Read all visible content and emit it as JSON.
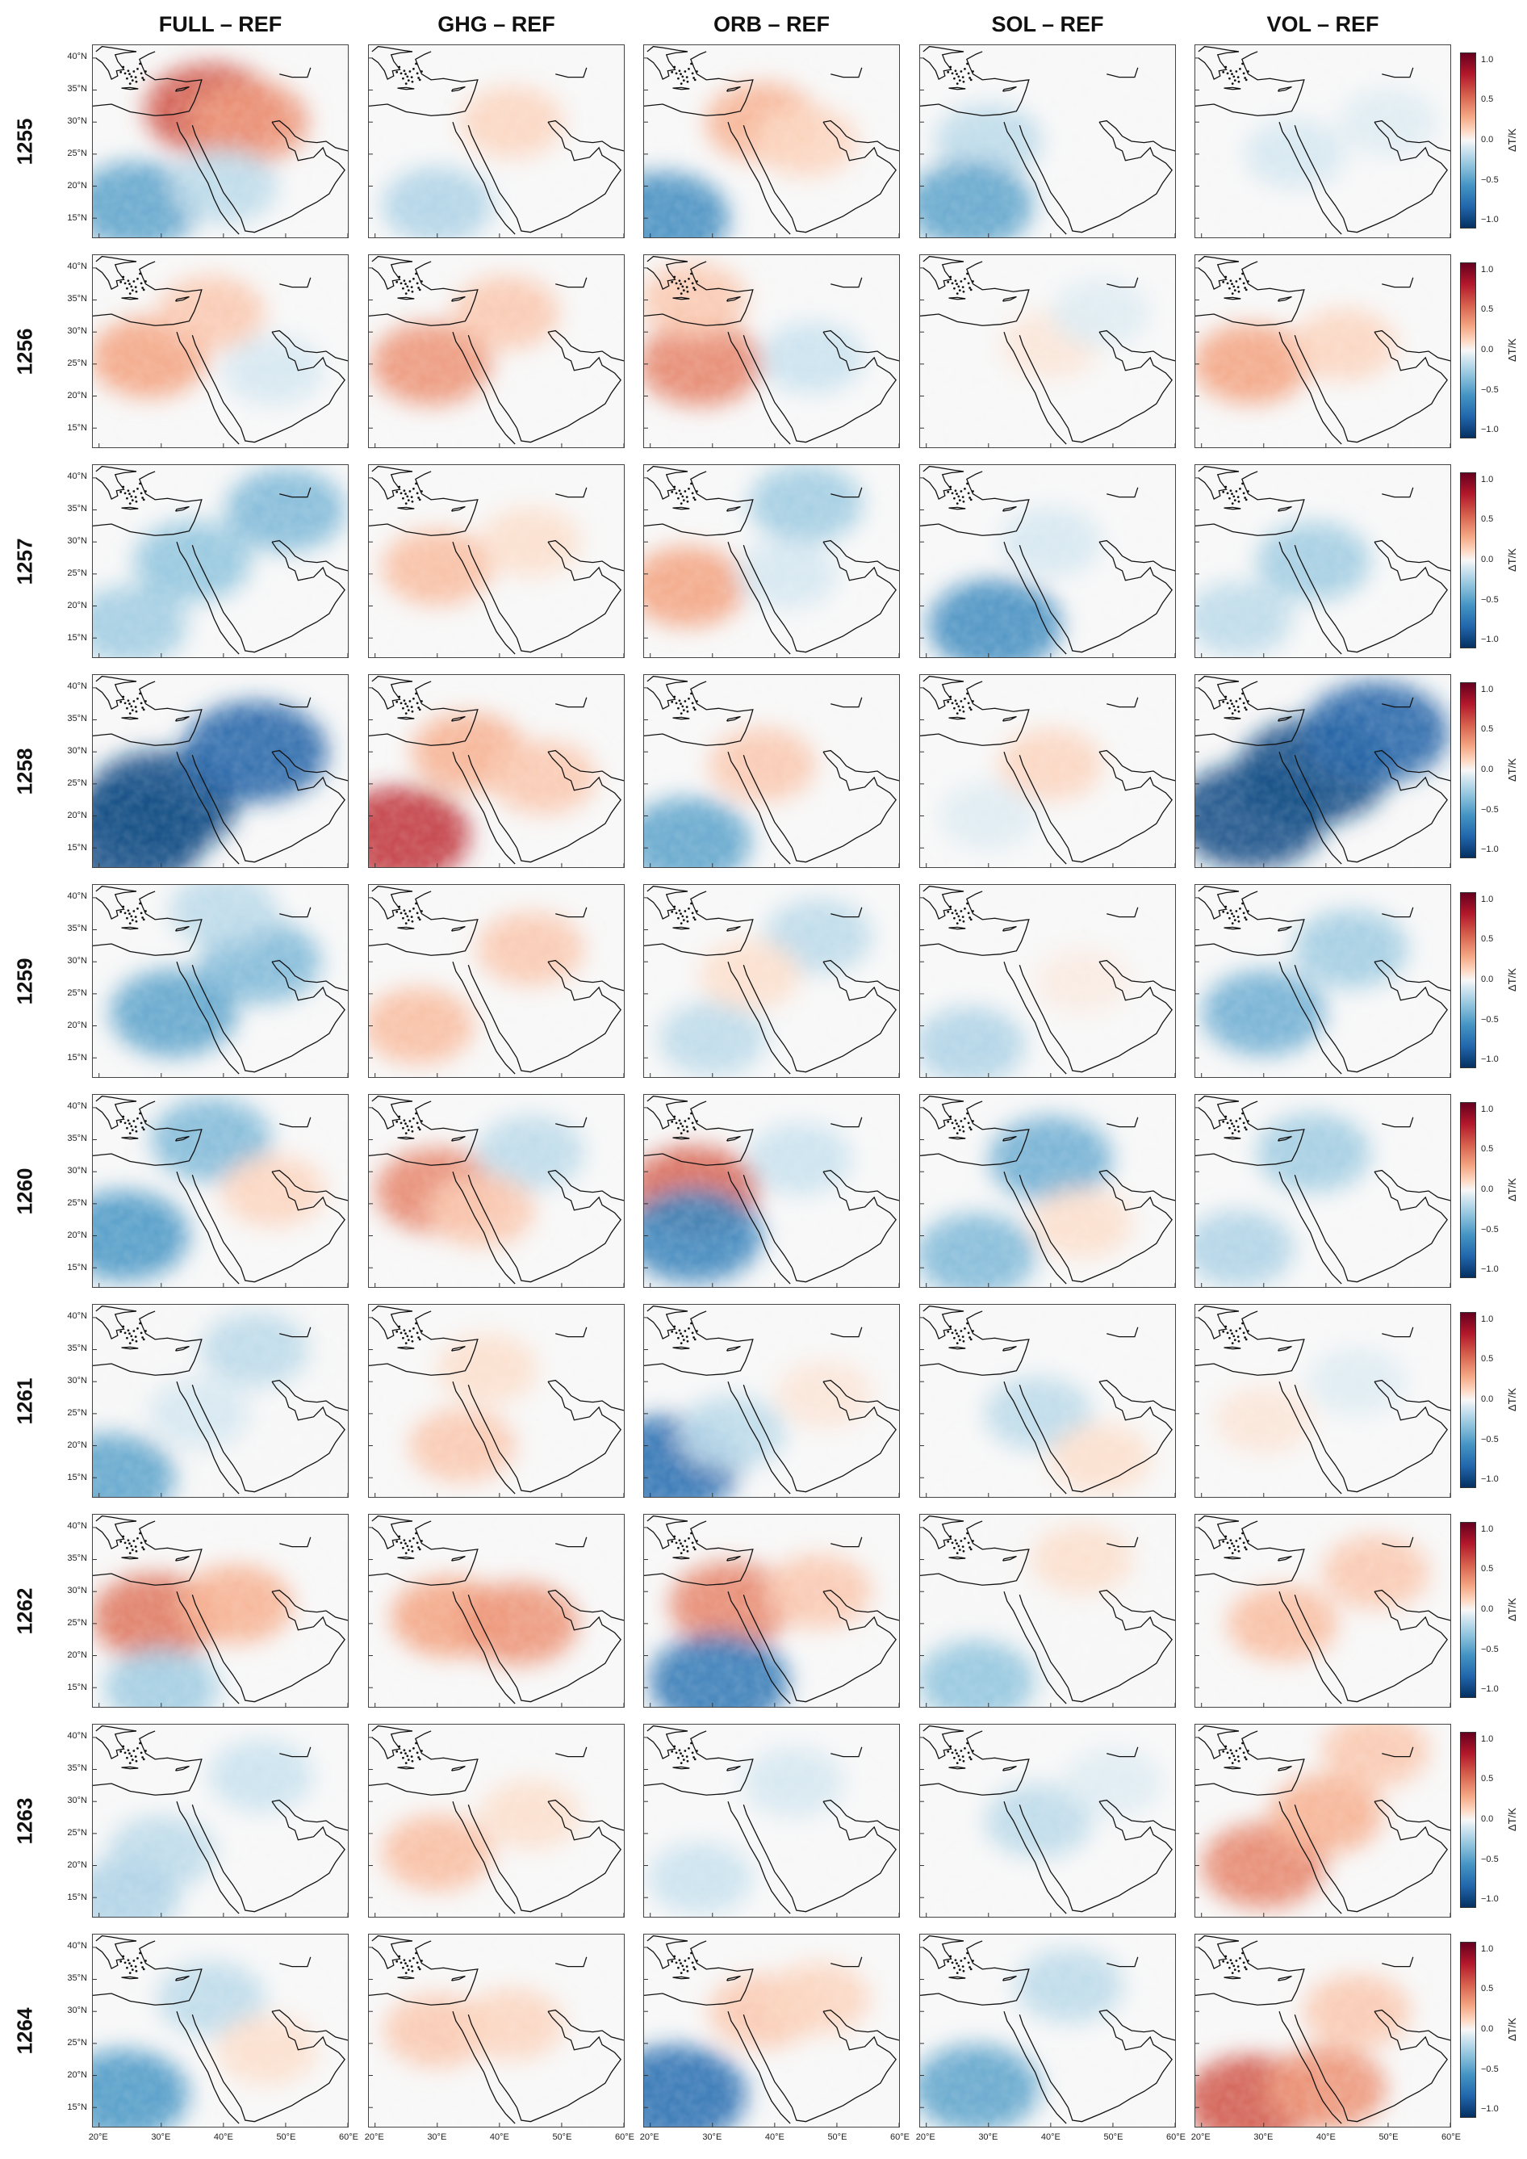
{
  "chart_data": {
    "type": "heatmap",
    "description_free": true,
    "columns": [
      "FULL – REF",
      "GHG – REF",
      "ORB – REF",
      "SOL – REF",
      "VOL – REF"
    ],
    "rows": [
      "1255",
      "1256",
      "1257",
      "1258",
      "1259",
      "1260",
      "1261",
      "1262",
      "1263",
      "1264"
    ],
    "y_tick_labels": [
      "40°N",
      "35°N",
      "30°N",
      "25°N",
      "20°N",
      "15°N"
    ],
    "y_ticks": [
      40,
      35,
      30,
      25,
      20,
      15
    ],
    "x_tick_labels": [
      "20°E",
      "30°E",
      "40°E",
      "50°E",
      "60°E"
    ],
    "x_ticks": [
      20,
      30,
      40,
      50,
      60
    ],
    "lon_range": [
      19,
      60
    ],
    "lat_range": [
      12,
      42
    ],
    "colorbar": {
      "label": "ΔT/K",
      "ticks": [
        "1.0",
        "0.5",
        "0.0",
        "−0.5",
        "−1.0"
      ],
      "tick_values": [
        1.0,
        0.5,
        0.0,
        -0.5,
        -1.0
      ],
      "range": [
        -1.1,
        1.1
      ],
      "colors": [
        "#67001f",
        "#b2182b",
        "#d6604d",
        "#f4a582",
        "#fddbc7",
        "#f7f7f7",
        "#d1e5f0",
        "#92c5de",
        "#4393c3",
        "#2166ac",
        "#053061"
      ]
    },
    "anomaly_blobs": [
      [
        [
          [
            38,
            32,
            0.7
          ],
          [
            44,
            30,
            0.5
          ],
          [
            26,
            17,
            -0.6
          ],
          [
            40,
            20,
            -0.3
          ]
        ],
        [
          [
            42,
            30,
            0.25
          ],
          [
            30,
            17,
            -0.35
          ]
        ],
        [
          [
            38,
            30,
            0.4
          ],
          [
            22,
            15,
            -0.7
          ],
          [
            45,
            27,
            0.25
          ]
        ],
        [
          [
            30,
            27,
            -0.3
          ],
          [
            27,
            17,
            -0.6
          ]
        ],
        [
          [
            35,
            25,
            -0.2
          ],
          [
            50,
            30,
            -0.15
          ]
        ]
      ],
      [
        [
          [
            28,
            26,
            0.45
          ],
          [
            38,
            33,
            0.3
          ],
          [
            48,
            24,
            -0.2
          ]
        ],
        [
          [
            29,
            25,
            0.5
          ],
          [
            41,
            33,
            0.3
          ]
        ],
        [
          [
            28,
            25,
            0.55
          ],
          [
            46,
            26,
            -0.25
          ],
          [
            27,
            35,
            0.3
          ]
        ],
        [
          [
            40,
            28,
            0.15
          ],
          [
            48,
            33,
            -0.15
          ]
        ],
        [
          [
            28,
            25,
            0.45
          ],
          [
            43,
            28,
            0.25
          ]
        ]
      ],
      [
        [
          [
            35,
            27,
            -0.45
          ],
          [
            50,
            35,
            -0.5
          ],
          [
            25,
            17,
            -0.4
          ]
        ],
        [
          [
            30,
            26,
            0.35
          ],
          [
            45,
            30,
            0.2
          ]
        ],
        [
          [
            26,
            23,
            0.45
          ],
          [
            45,
            36,
            -0.4
          ],
          [
            42,
            25,
            -0.2
          ]
        ],
        [
          [
            31,
            17,
            -0.7
          ],
          [
            40,
            30,
            -0.2
          ]
        ],
        [
          [
            38,
            27,
            -0.4
          ],
          [
            26,
            18,
            -0.3
          ]
        ]
      ],
      [
        [
          [
            30,
            22,
            -1.0
          ],
          [
            45,
            30,
            -0.9
          ],
          [
            25,
            17,
            -1.0
          ]
        ],
        [
          [
            24,
            17,
            0.8
          ],
          [
            35,
            30,
            0.4
          ],
          [
            47,
            26,
            0.3
          ]
        ],
        [
          [
            38,
            28,
            0.3
          ],
          [
            26,
            16,
            -0.6
          ]
        ],
        [
          [
            40,
            28,
            0.25
          ],
          [
            30,
            20,
            -0.15
          ]
        ],
        [
          [
            38,
            27,
            -1.0
          ],
          [
            28,
            20,
            -1.0
          ],
          [
            48,
            33,
            -0.9
          ]
        ]
      ],
      [
        [
          [
            32,
            22,
            -0.6
          ],
          [
            46,
            30,
            -0.5
          ],
          [
            40,
            38,
            -0.3
          ]
        ],
        [
          [
            27,
            20,
            0.35
          ],
          [
            45,
            32,
            0.3
          ]
        ],
        [
          [
            30,
            18,
            -0.3
          ],
          [
            47,
            34,
            -0.3
          ],
          [
            36,
            28,
            0.2
          ]
        ],
        [
          [
            27,
            17,
            -0.35
          ],
          [
            45,
            27,
            0.1
          ]
        ],
        [
          [
            30,
            22,
            -0.55
          ],
          [
            44,
            32,
            -0.4
          ]
        ]
      ],
      [
        [
          [
            24,
            20,
            -0.65
          ],
          [
            38,
            35,
            -0.5
          ],
          [
            48,
            27,
            0.25
          ]
        ],
        [
          [
            30,
            27,
            0.55
          ],
          [
            45,
            33,
            -0.3
          ],
          [
            37,
            24,
            0.3
          ]
        ],
        [
          [
            27,
            27,
            0.65
          ],
          [
            27,
            20,
            -0.75
          ],
          [
            44,
            32,
            -0.25
          ]
        ],
        [
          [
            40,
            32,
            -0.55
          ],
          [
            28,
            17,
            -0.5
          ],
          [
            45,
            22,
            0.2
          ]
        ],
        [
          [
            38,
            33,
            -0.4
          ],
          [
            26,
            18,
            -0.35
          ]
        ]
      ],
      [
        [
          [
            22,
            15,
            -0.6
          ],
          [
            45,
            35,
            -0.3
          ],
          [
            36,
            25,
            -0.2
          ]
        ],
        [
          [
            34,
            20,
            0.3
          ],
          [
            38,
            32,
            0.2
          ]
        ],
        [
          [
            23,
            17,
            -0.85
          ],
          [
            33,
            22,
            -0.3
          ],
          [
            48,
            28,
            0.15
          ]
        ],
        [
          [
            38,
            25,
            -0.3
          ],
          [
            48,
            18,
            0.2
          ]
        ],
        [
          [
            30,
            24,
            0.15
          ],
          [
            45,
            30,
            -0.15
          ]
        ]
      ],
      [
        [
          [
            29,
            26,
            0.6
          ],
          [
            42,
            28,
            0.4
          ],
          [
            30,
            15,
            -0.4
          ]
        ],
        [
          [
            32,
            26,
            0.45
          ],
          [
            43,
            25,
            0.5
          ]
        ],
        [
          [
            33,
            28,
            0.55
          ],
          [
            31,
            16,
            -0.8
          ],
          [
            47,
            30,
            0.3
          ]
        ],
        [
          [
            28,
            16,
            -0.45
          ],
          [
            45,
            35,
            0.2
          ]
        ],
        [
          [
            33,
            25,
            0.35
          ],
          [
            48,
            33,
            0.3
          ]
        ]
      ],
      [
        [
          [
            30,
            22,
            -0.3
          ],
          [
            24,
            15,
            -0.35
          ],
          [
            46,
            34,
            -0.25
          ]
        ],
        [
          [
            30,
            22,
            0.35
          ],
          [
            45,
            28,
            0.2
          ]
        ],
        [
          [
            28,
            18,
            -0.25
          ],
          [
            43,
            33,
            -0.2
          ]
        ],
        [
          [
            38,
            27,
            -0.3
          ],
          [
            50,
            33,
            -0.15
          ]
        ],
        [
          [
            30,
            20,
            0.55
          ],
          [
            40,
            28,
            0.4
          ],
          [
            48,
            38,
            0.3
          ]
        ]
      ],
      [
        [
          [
            24,
            17,
            -0.65
          ],
          [
            38,
            32,
            -0.3
          ],
          [
            47,
            24,
            0.2
          ]
        ],
        [
          [
            30,
            27,
            0.3
          ],
          [
            42,
            28,
            0.25
          ]
        ],
        [
          [
            24,
            17,
            -0.85
          ],
          [
            38,
            30,
            0.3
          ],
          [
            47,
            32,
            0.25
          ]
        ],
        [
          [
            28,
            18,
            -0.6
          ],
          [
            43,
            34,
            -0.3
          ]
        ],
        [
          [
            28,
            16,
            0.7
          ],
          [
            40,
            18,
            0.5
          ],
          [
            45,
            30,
            0.3
          ]
        ]
      ]
    ]
  }
}
